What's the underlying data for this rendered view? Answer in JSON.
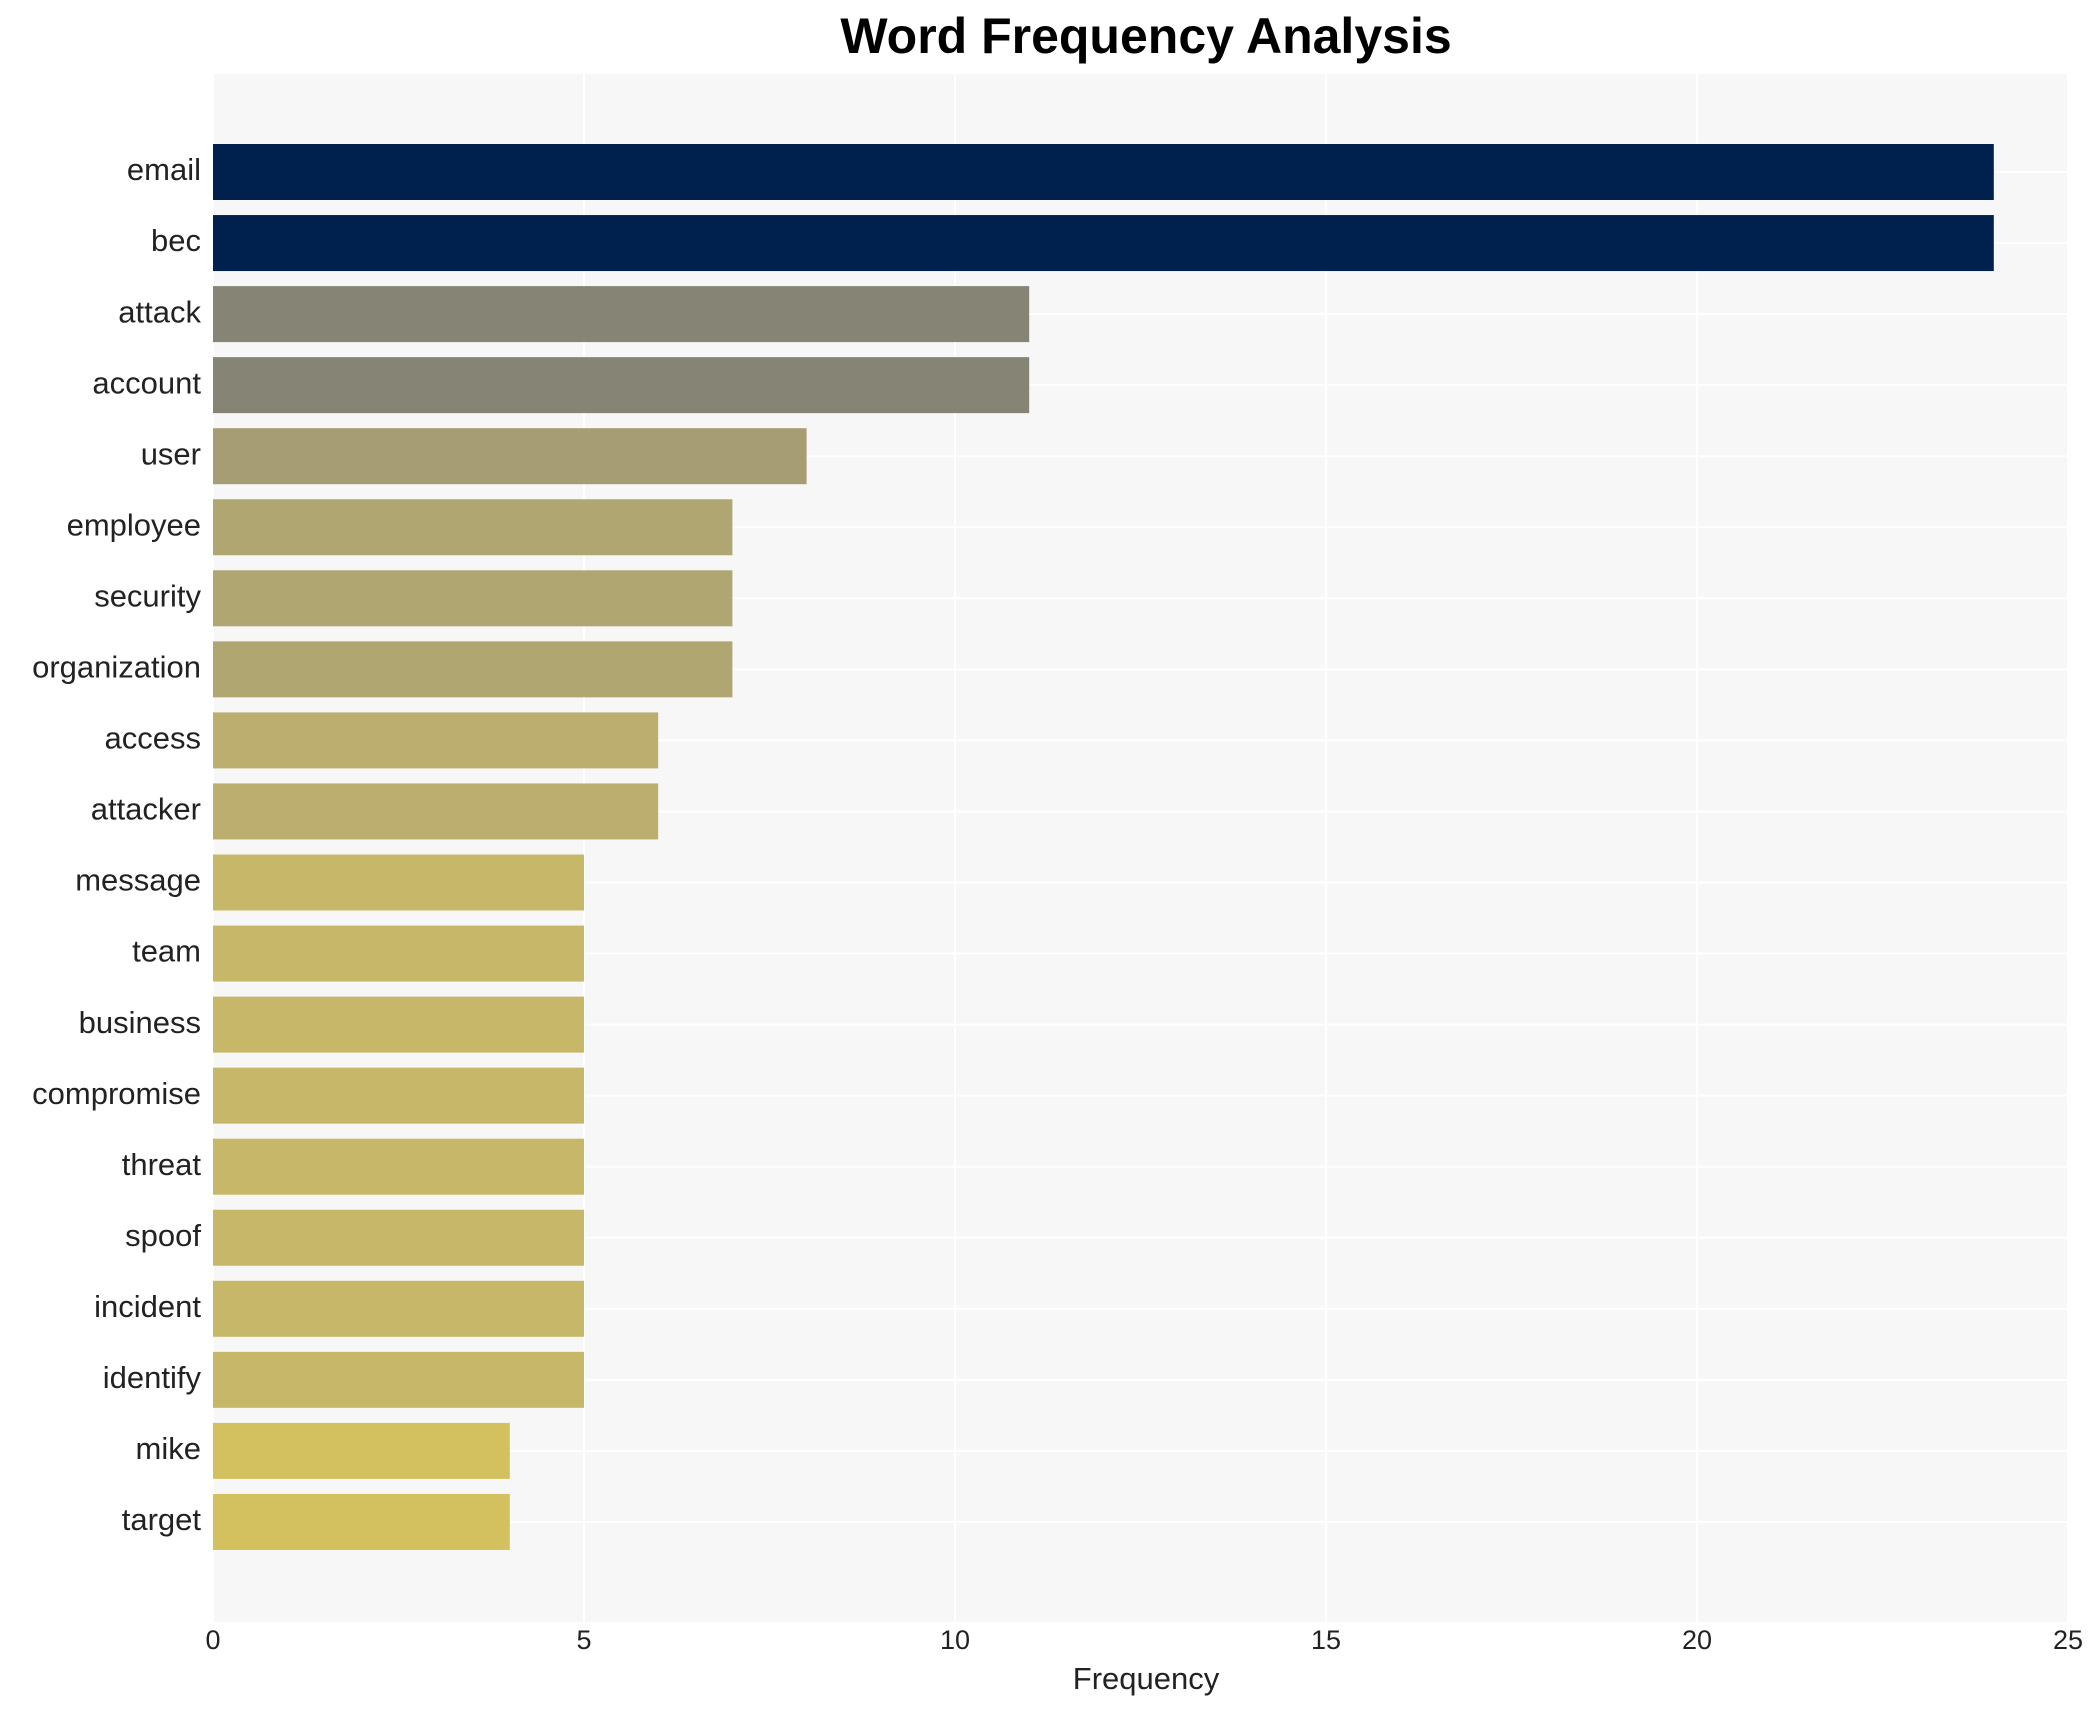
{
  "chart_data": {
    "type": "barh",
    "title": "Word Frequency Analysis",
    "x_label": "Frequency",
    "categories": [
      "email",
      "bec",
      "attack",
      "account",
      "user",
      "employee",
      "security",
      "organization",
      "access",
      "attacker",
      "message",
      "team",
      "business",
      "compromise",
      "threat",
      "spoof",
      "incident",
      "identify",
      "mike",
      "target"
    ],
    "values": [
      24,
      24,
      11,
      11,
      8,
      7,
      7,
      7,
      6,
      6,
      5,
      5,
      5,
      5,
      5,
      5,
      5,
      5,
      4,
      4
    ],
    "colors": [
      "#00214d",
      "#00214d",
      "#868474",
      "#868474",
      "#a69d75",
      "#b0a672",
      "#b0a672",
      "#b0a672",
      "#bbae6f",
      "#bbae6f",
      "#c7b869",
      "#c7b869",
      "#c7b869",
      "#c7b869",
      "#c7b869",
      "#c7b869",
      "#c7b869",
      "#c7b869",
      "#d3c15f",
      "#d3c15f"
    ],
    "xlim": [
      0,
      25
    ],
    "xticks": [
      0,
      5,
      10,
      15,
      20,
      25
    ],
    "grid": true
  }
}
